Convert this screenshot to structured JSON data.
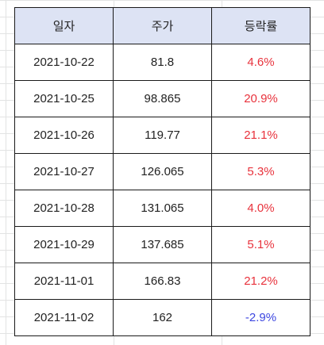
{
  "table": {
    "headers": {
      "date": "일자",
      "price": "주가",
      "change": "등락률"
    },
    "rows": [
      {
        "date": "2021-10-22",
        "price": "81.8",
        "change": "4.6%"
      },
      {
        "date": "2021-10-25",
        "price": "98.865",
        "change": "20.9%"
      },
      {
        "date": "2021-10-26",
        "price": "119.77",
        "change": "21.1%"
      },
      {
        "date": "2021-10-27",
        "price": "126.065",
        "change": "5.3%"
      },
      {
        "date": "2021-10-28",
        "price": "131.065",
        "change": "4.0%"
      },
      {
        "date": "2021-10-29",
        "price": "137.685",
        "change": "5.1%"
      },
      {
        "date": "2021-11-01",
        "price": "166.83",
        "change": "21.2%"
      },
      {
        "date": "2021-11-02",
        "price": "162",
        "change": "-2.9%"
      }
    ]
  },
  "colors": {
    "header_background": "#dde3f4",
    "positive_change": "#e8323c",
    "negative_change": "#3c46e0",
    "grid_line": "#e2e3e3"
  }
}
